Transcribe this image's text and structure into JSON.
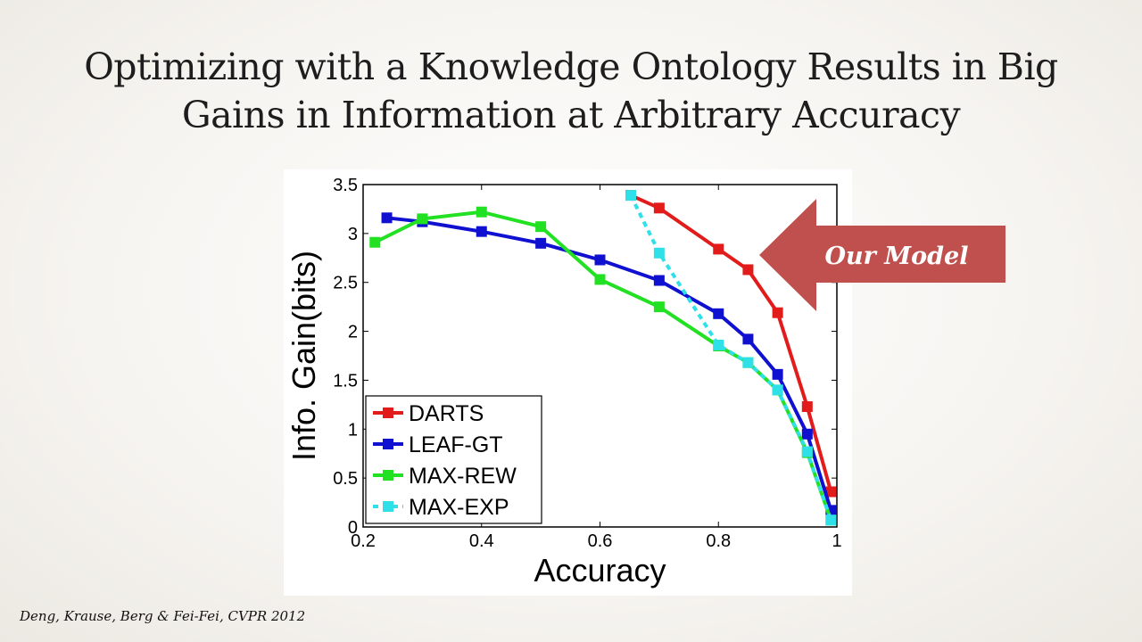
{
  "slide": {
    "title_line1": "Optimizing with a Knowledge Ontology Results in Big",
    "title_line2": "Gains in Information at Arbitrary Accuracy",
    "citation": "Deng, Krause, Berg & Fei-Fei, CVPR 2012",
    "callout": "Our Model",
    "callout_color": "#c0504d"
  },
  "chart_data": {
    "type": "line",
    "xlabel": "Accuracy",
    "ylabel": "Info. Gain(bits)",
    "xlim": [
      0.2,
      1
    ],
    "ylim": [
      0,
      3.5
    ],
    "xticks": [
      "0.2",
      "0.4",
      "0.6",
      "0.8",
      "1"
    ],
    "yticks": [
      "0",
      "0.5",
      "1",
      "1.5",
      "2",
      "2.5",
      "3",
      "3.5"
    ],
    "grid": false,
    "legend_position": "bottom-left",
    "series": [
      {
        "name": "DARTS",
        "color": "#e21b1b",
        "dashed": false,
        "x": [
          0.652,
          0.7,
          0.8,
          0.85,
          0.9,
          0.95,
          0.99
        ],
        "y": [
          3.39,
          3.26,
          2.84,
          2.63,
          2.19,
          1.23,
          0.36
        ]
      },
      {
        "name": "LEAF-GT",
        "color": "#1010d0",
        "dashed": false,
        "x": [
          0.24,
          0.3,
          0.4,
          0.5,
          0.6,
          0.7,
          0.8,
          0.85,
          0.9,
          0.95,
          0.99
        ],
        "y": [
          3.16,
          3.12,
          3.02,
          2.9,
          2.73,
          2.52,
          2.18,
          1.92,
          1.56,
          0.95,
          0.17
        ]
      },
      {
        "name": "MAX-REW",
        "color": "#22e022",
        "dashed": false,
        "x": [
          0.22,
          0.3,
          0.4,
          0.5,
          0.6,
          0.7,
          0.8,
          0.85,
          0.9,
          0.95,
          0.99
        ],
        "y": [
          2.91,
          3.15,
          3.22,
          3.07,
          2.53,
          2.25,
          1.85,
          1.68,
          1.4,
          0.76,
          0.07
        ]
      },
      {
        "name": "MAX-EXP",
        "color": "#30e0e8",
        "dashed": true,
        "x": [
          0.652,
          0.7,
          0.8,
          0.85,
          0.9,
          0.95,
          0.99
        ],
        "y": [
          3.39,
          2.8,
          1.86,
          1.68,
          1.4,
          0.77,
          0.07
        ]
      }
    ]
  }
}
